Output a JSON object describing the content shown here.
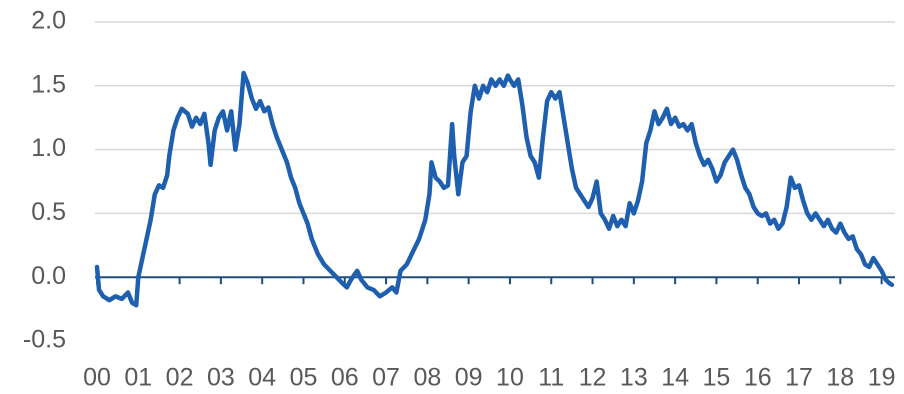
{
  "chart_data": {
    "type": "line",
    "color": "#1f5fb0",
    "xlim": [
      0,
      19.3
    ],
    "ylim": [
      -0.5,
      2.0
    ],
    "yticks": [
      {
        "value": -0.5,
        "label": "-0.5"
      },
      {
        "value": 0,
        "label": "0.0"
      },
      {
        "value": 0.5,
        "label": "0.5"
      },
      {
        "value": 1,
        "label": "1.0"
      },
      {
        "value": 1.5,
        "label": "1.5"
      },
      {
        "value": 2,
        "label": "2.0"
      }
    ],
    "xticks": [
      {
        "value": 0,
        "label": "00"
      },
      {
        "value": 1,
        "label": "01"
      },
      {
        "value": 2,
        "label": "02"
      },
      {
        "value": 3,
        "label": "03"
      },
      {
        "value": 4,
        "label": "04"
      },
      {
        "value": 5,
        "label": "05"
      },
      {
        "value": 6,
        "label": "06"
      },
      {
        "value": 7,
        "label": "07"
      },
      {
        "value": 8,
        "label": "08"
      },
      {
        "value": 9,
        "label": "09"
      },
      {
        "value": 10,
        "label": "10"
      },
      {
        "value": 11,
        "label": "11"
      },
      {
        "value": 12,
        "label": "12"
      },
      {
        "value": 13,
        "label": "13"
      },
      {
        "value": 14,
        "label": "14"
      },
      {
        "value": 15,
        "label": "15"
      },
      {
        "value": 16,
        "label": "16"
      },
      {
        "value": 17,
        "label": "17"
      },
      {
        "value": 18,
        "label": "18"
      },
      {
        "value": 19,
        "label": "19"
      }
    ],
    "grid": true,
    "x": [
      0,
      0.05,
      0.15,
      0.3,
      0.45,
      0.6,
      0.75,
      0.85,
      0.95,
      1.0,
      1.1,
      1.2,
      1.3,
      1.4,
      1.5,
      1.6,
      1.7,
      1.75,
      1.85,
      1.95,
      2.05,
      2.2,
      2.3,
      2.4,
      2.5,
      2.6,
      2.7,
      2.75,
      2.85,
      2.95,
      3.05,
      3.15,
      3.25,
      3.35,
      3.45,
      3.55,
      3.65,
      3.75,
      3.85,
      3.95,
      4.05,
      4.15,
      4.25,
      4.35,
      4.5,
      4.6,
      4.7,
      4.8,
      4.9,
      5.0,
      5.1,
      5.2,
      5.35,
      5.5,
      5.65,
      5.8,
      5.95,
      6.05,
      6.15,
      6.3,
      6.4,
      6.55,
      6.7,
      6.85,
      7.0,
      7.15,
      7.25,
      7.35,
      7.5,
      7.65,
      7.8,
      7.95,
      8.05,
      8.1,
      8.2,
      8.3,
      8.4,
      8.5,
      8.6,
      8.65,
      8.75,
      8.85,
      8.95,
      9.05,
      9.15,
      9.25,
      9.35,
      9.45,
      9.55,
      9.65,
      9.75,
      9.85,
      9.95,
      10.0,
      10.1,
      10.2,
      10.3,
      10.4,
      10.5,
      10.6,
      10.7,
      10.8,
      10.9,
      11.0,
      11.1,
      11.2,
      11.3,
      11.4,
      11.5,
      11.6,
      11.7,
      11.8,
      11.9,
      12.0,
      12.1,
      12.2,
      12.3,
      12.4,
      12.5,
      12.6,
      12.7,
      12.8,
      12.9,
      13.0,
      13.1,
      13.2,
      13.3,
      13.4,
      13.5,
      13.6,
      13.7,
      13.8,
      13.9,
      14.0,
      14.1,
      14.2,
      14.3,
      14.4,
      14.5,
      14.6,
      14.7,
      14.8,
      14.9,
      15.0,
      15.1,
      15.2,
      15.3,
      15.4,
      15.5,
      15.6,
      15.7,
      15.8,
      15.9,
      16.0,
      16.1,
      16.2,
      16.3,
      16.4,
      16.5,
      16.6,
      16.7,
      16.8,
      16.9,
      17.0,
      17.1,
      17.2,
      17.3,
      17.4,
      17.5,
      17.6,
      17.7,
      17.8,
      17.9,
      18.0,
      18.1,
      18.2,
      18.3,
      18.4,
      18.5,
      18.6,
      18.7,
      18.8,
      18.9,
      19.0,
      19.1,
      19.2,
      19.25
    ],
    "values": [
      0.08,
      -0.1,
      -0.15,
      -0.18,
      -0.15,
      -0.17,
      -0.12,
      -0.2,
      -0.22,
      0.0,
      0.15,
      0.3,
      0.45,
      0.65,
      0.72,
      0.7,
      0.8,
      0.95,
      1.15,
      1.25,
      1.32,
      1.28,
      1.18,
      1.25,
      1.2,
      1.28,
      1.05,
      0.88,
      1.15,
      1.25,
      1.3,
      1.15,
      1.3,
      1.0,
      1.2,
      1.6,
      1.52,
      1.4,
      1.32,
      1.38,
      1.3,
      1.33,
      1.2,
      1.1,
      0.98,
      0.9,
      0.78,
      0.7,
      0.58,
      0.5,
      0.42,
      0.3,
      0.18,
      0.1,
      0.05,
      0.0,
      -0.05,
      -0.08,
      -0.02,
      0.05,
      -0.02,
      -0.08,
      -0.1,
      -0.15,
      -0.12,
      -0.08,
      -0.12,
      0.05,
      0.1,
      0.2,
      0.3,
      0.45,
      0.65,
      0.9,
      0.78,
      0.75,
      0.7,
      0.72,
      1.2,
      0.95,
      0.65,
      0.9,
      0.95,
      1.3,
      1.5,
      1.4,
      1.5,
      1.45,
      1.55,
      1.5,
      1.55,
      1.5,
      1.58,
      1.55,
      1.5,
      1.55,
      1.35,
      1.1,
      0.95,
      0.9,
      0.78,
      1.1,
      1.38,
      1.45,
      1.4,
      1.45,
      1.25,
      1.05,
      0.85,
      0.7,
      0.65,
      0.6,
      0.55,
      0.62,
      0.75,
      0.5,
      0.45,
      0.38,
      0.48,
      0.4,
      0.45,
      0.4,
      0.58,
      0.5,
      0.6,
      0.75,
      1.05,
      1.15,
      1.3,
      1.2,
      1.25,
      1.32,
      1.2,
      1.25,
      1.18,
      1.2,
      1.15,
      1.2,
      1.05,
      0.95,
      0.88,
      0.92,
      0.85,
      0.75,
      0.8,
      0.9,
      0.95,
      1.0,
      0.92,
      0.8,
      0.7,
      0.65,
      0.55,
      0.5,
      0.48,
      0.5,
      0.42,
      0.45,
      0.38,
      0.42,
      0.55,
      0.78,
      0.7,
      0.72,
      0.6,
      0.5,
      0.45,
      0.5,
      0.45,
      0.4,
      0.45,
      0.38,
      0.35,
      0.42,
      0.35,
      0.3,
      0.32,
      0.22,
      0.18,
      0.1,
      0.08,
      0.15,
      0.1,
      0.05,
      -0.02,
      -0.05,
      -0.06
    ]
  }
}
